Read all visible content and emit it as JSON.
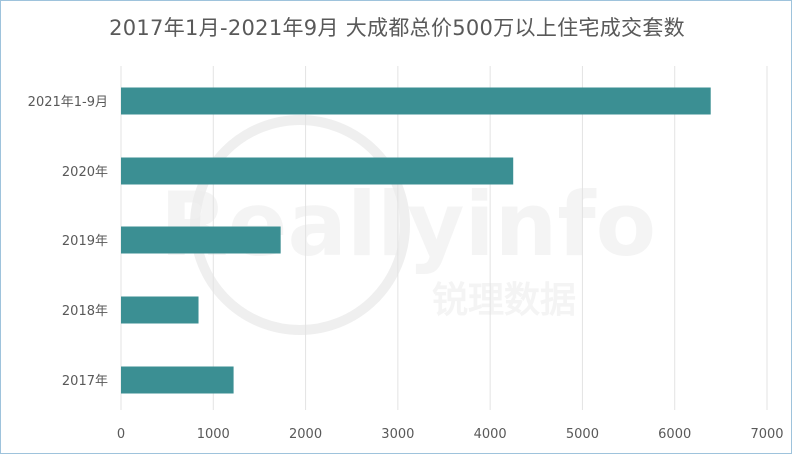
{
  "chart_data": {
    "type": "bar",
    "orientation": "horizontal",
    "title": "2017年1月-2021年9月 大成都总价500万以上住宅成交套数",
    "categories": [
      "2021年1-9月",
      "2020年",
      "2019年",
      "2018年",
      "2017年"
    ],
    "values": [
      6390,
      4250,
      1730,
      840,
      1220
    ],
    "xlim": [
      0,
      7000
    ],
    "xticks": [
      0,
      1000,
      2000,
      3000,
      4000,
      5000,
      6000,
      7000
    ],
    "grid": true,
    "bar_color": "#3b8f93",
    "grid_color": "#e3e3e3"
  },
  "watermark": {
    "text": "Reallyinfo",
    "subtext": "锐理数据"
  }
}
